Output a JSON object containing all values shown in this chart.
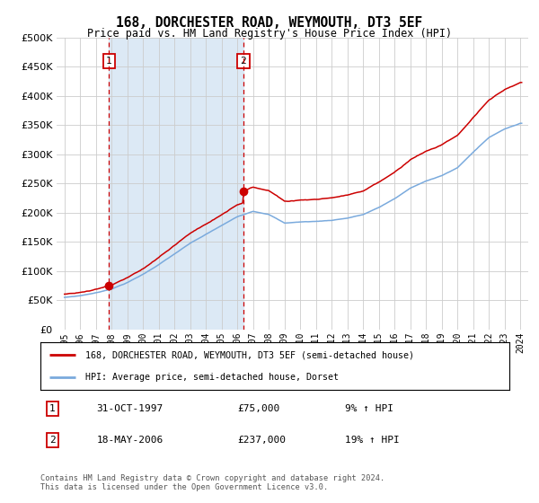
{
  "title": "168, DORCHESTER ROAD, WEYMOUTH, DT3 5EF",
  "subtitle": "Price paid vs. HM Land Registry's House Price Index (HPI)",
  "legend_line1": "168, DORCHESTER ROAD, WEYMOUTH, DT3 5EF (semi-detached house)",
  "legend_line2": "HPI: Average price, semi-detached house, Dorset",
  "footnote": "Contains HM Land Registry data © Crown copyright and database right 2024.\nThis data is licensed under the Open Government Licence v3.0.",
  "transaction1_label": "31-OCT-1997",
  "transaction1_price": "£75,000",
  "transaction1_hpi": "9% ↑ HPI",
  "transaction1_date_x": 1997.83,
  "transaction1_price_y": 75000,
  "transaction2_label": "18-MAY-2006",
  "transaction2_price": "£237,000",
  "transaction2_hpi": "19% ↑ HPI",
  "transaction2_date_x": 2006.38,
  "transaction2_price_y": 237000,
  "line_color_red": "#cc0000",
  "line_color_blue": "#7aaadd",
  "highlight_color": "#dce9f5",
  "vline_color": "#cc0000",
  "grid_color": "#cccccc",
  "bg_color": "#ffffff",
  "ylim": [
    0,
    500000
  ],
  "xlim_start": 1994.5,
  "xlim_end": 2024.5
}
